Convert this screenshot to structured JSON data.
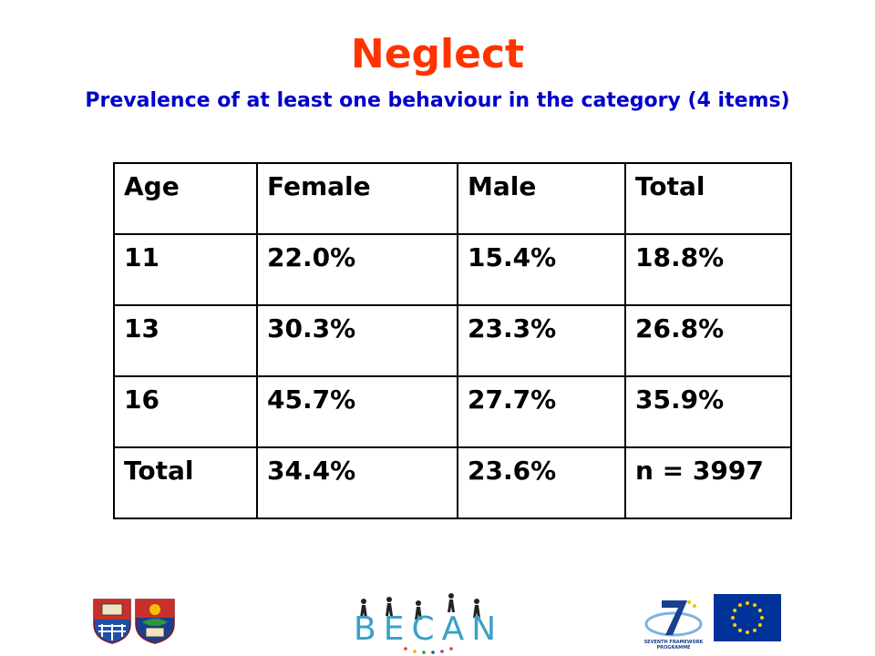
{
  "slide": {
    "title": "Neglect",
    "subtitle": "Prevalence of at least one behaviour in the category (4 items)"
  },
  "table": {
    "headers": [
      "Age",
      "Female",
      "Male",
      "Total"
    ],
    "rows": [
      [
        "11",
        "22.0%",
        "15.4%",
        "18.8%"
      ],
      [
        "13",
        "30.3%",
        "23.3%",
        "26.8%"
      ],
      [
        "16",
        "45.7%",
        "27.7%",
        "35.9%"
      ],
      [
        "Total",
        "34.4%",
        "23.6%",
        "n = 3997"
      ]
    ]
  },
  "footer": {
    "project_logo_text": "BECAN",
    "fp7_label": "SEVENTH FRAMEWORK PROGRAMME"
  },
  "colors": {
    "title": "#ff3300",
    "subtitle": "#0000cc",
    "eu_blue": "#003399",
    "eu_gold": "#ffcc00"
  }
}
